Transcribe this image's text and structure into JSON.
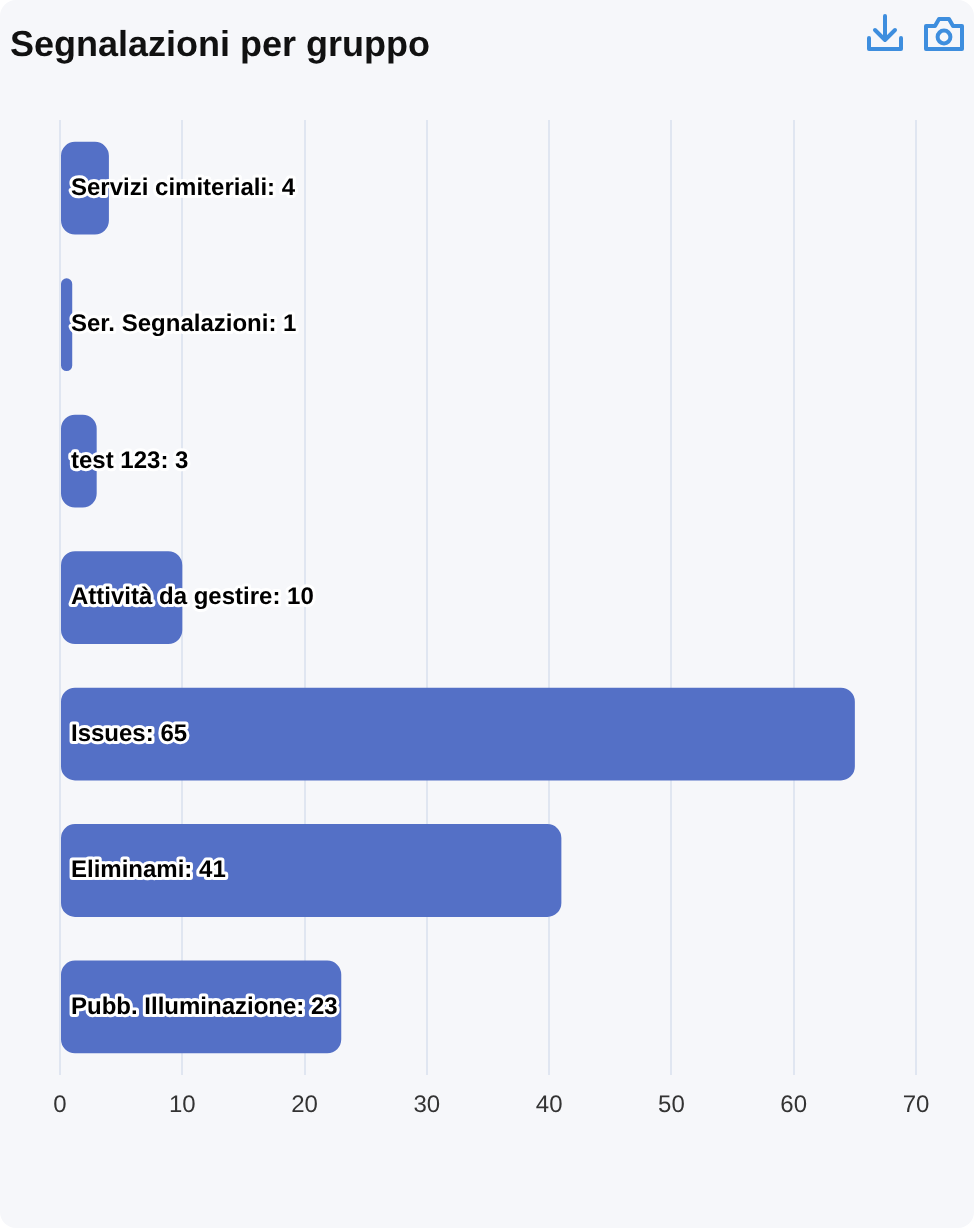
{
  "chart_data": {
    "type": "bar",
    "title": "Segnalazioni per gruppo",
    "orientation": "horizontal",
    "categories": [
      null,
      null,
      null,
      null,
      null,
      null,
      null
    ],
    "values": [
      4,
      1,
      3,
      10,
      65,
      41,
      23
    ],
    "color": "#5470c6",
    "value_labels": [
      "Servizi cimiteriali: 4",
      "Ser. Segnalazioni: 1",
      "test 123: 3",
      "Attività da gestire: 10",
      "Issues: 65",
      "Eliminami: 41",
      "Pubb. Illuminazione: 23"
    ],
    "xlim": [
      0,
      70
    ],
    "xticks": [
      0,
      10,
      20,
      30,
      40,
      50,
      60,
      70
    ],
    "grid": "x",
    "tick_labels": "x"
  }
}
